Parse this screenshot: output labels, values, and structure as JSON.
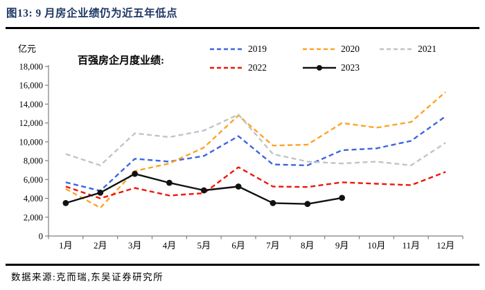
{
  "header": {
    "title": "图13: 9 月房企业绩仍为近五年低点"
  },
  "chart": {
    "unit_label": "亿元",
    "series_label": "百强房企月度业绩:"
  },
  "footer": {
    "source": "数据来源:克而瑞,东吴证券研究所"
  },
  "colors": {
    "title_navy": "#1F3864",
    "axis_gray": "#7F7F7F",
    "rule_black": "#000000"
  },
  "chart_data": {
    "type": "line",
    "title": "百强房企月度业绩",
    "unit": "亿元",
    "xlabel": "",
    "ylabel": "亿元",
    "ylim": [
      0,
      18000
    ],
    "ytick_step": 2000,
    "grid": false,
    "legend_position": "top",
    "categories": [
      "1月",
      "2月",
      "3月",
      "4月",
      "5月",
      "6月",
      "7月",
      "8月",
      "9月",
      "10月",
      "11月",
      "12月"
    ],
    "series": [
      {
        "name": "2019",
        "color": "#3A66E0",
        "style": "dashed",
        "values": [
          5700,
          4800,
          8200,
          7900,
          8500,
          10600,
          7600,
          7500,
          9100,
          9300,
          10100,
          12700
        ]
      },
      {
        "name": "2020",
        "color": "#FFA226",
        "style": "dashed",
        "values": [
          5000,
          3000,
          6900,
          7700,
          9400,
          12800,
          9600,
          9700,
          12000,
          11500,
          12100,
          15300
        ]
      },
      {
        "name": "2021",
        "color": "#C3C3C3",
        "style": "dashed",
        "values": [
          8700,
          7500,
          10900,
          10500,
          11200,
          12900,
          8700,
          7900,
          7700,
          7900,
          7500,
          9900
        ]
      },
      {
        "name": "2022",
        "color": "#EE1409",
        "style": "dashed",
        "values": [
          5250,
          4000,
          5100,
          4300,
          4550,
          7300,
          5250,
          5200,
          5700,
          5550,
          5400,
          6800
        ]
      },
      {
        "name": "2023",
        "color": "#111111",
        "style": "solid-marker",
        "values": [
          3500,
          4600,
          6600,
          5650,
          4850,
          5250,
          3500,
          3400,
          4050
        ]
      }
    ]
  }
}
